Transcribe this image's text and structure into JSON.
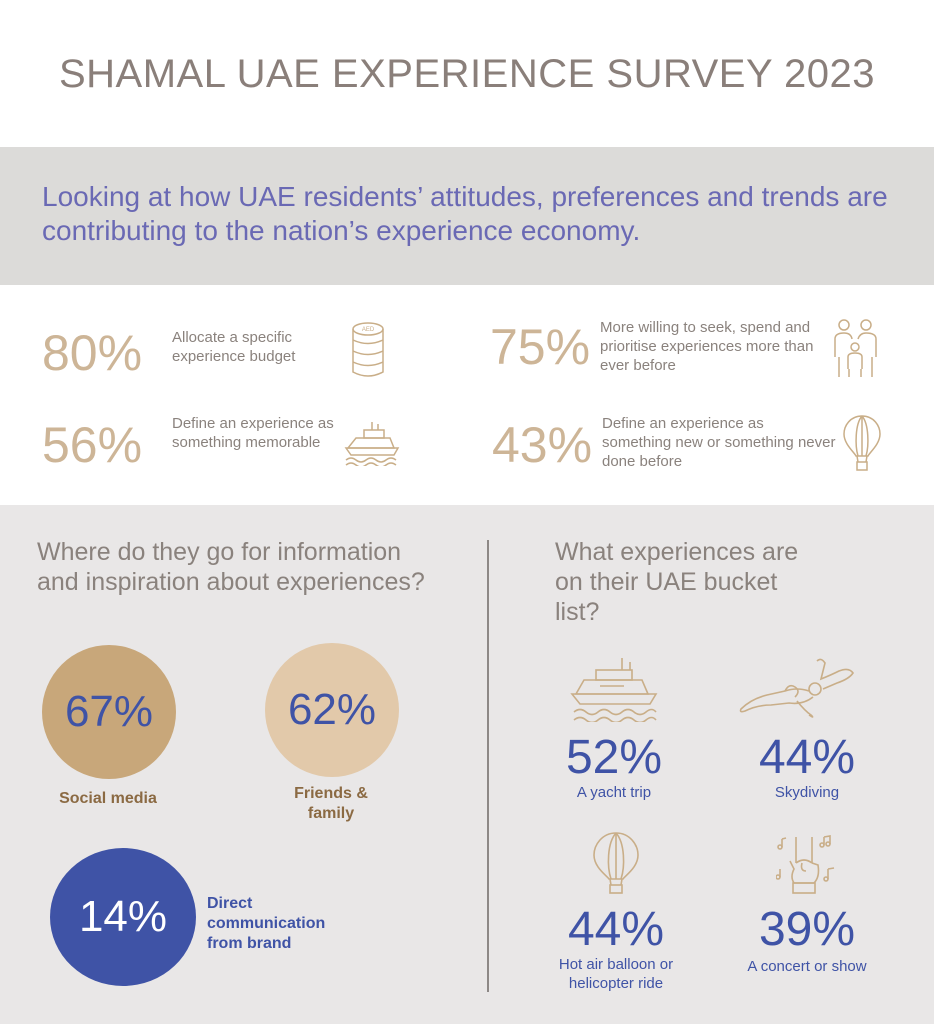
{
  "title": "SHAMAL UAE EXPERIENCE SURVEY 2023",
  "intro": "Looking at how UAE residents’ attitudes, preferences and trends are contributing to the nation’s experience economy.",
  "stats": [
    {
      "pct": "80%",
      "desc": "Allocate a specific experience budget",
      "icon": "coin-stack-aed-icon",
      "icon_text": "AED"
    },
    {
      "pct": "75%",
      "desc": "More willing to seek, spend and prioritise experiences more than ever before",
      "icon": "family-icon"
    },
    {
      "pct": "56%",
      "desc": "Define an experience as something memorable",
      "icon": "yacht-icon"
    },
    {
      "pct": "43%",
      "desc": "Define an experience as something new or something never done before",
      "icon": "hot-air-balloon-icon"
    }
  ],
  "sources": {
    "question": "Where do they go for information and inspiration about experiences?",
    "items": [
      {
        "pct": "67%",
        "label": "Social media",
        "value": 67,
        "color": "#c8a77a",
        "text_color": "#8b6a43"
      },
      {
        "pct": "62%",
        "label": "Friends & family",
        "value": 62,
        "color": "#e2c9aa",
        "text_color": "#8b6a43"
      },
      {
        "pct": "14%",
        "label": "Direct communication from brand",
        "value": 14,
        "color": "#3f53a6",
        "text_color": "#3f53a6"
      }
    ]
  },
  "bucket": {
    "question": "What experiences are on their UAE bucket list?",
    "items": [
      {
        "pct": "52%",
        "label": "A yacht trip",
        "icon": "yacht-icon"
      },
      {
        "pct": "44%",
        "label": "Skydiving",
        "icon": "skydiver-icon"
      },
      {
        "pct": "44%",
        "label": "Hot air balloon or helicopter ride",
        "icon": "hot-air-balloon-icon"
      },
      {
        "pct": "39%",
        "label": "A concert or show",
        "icon": "rock-hand-music-icon"
      }
    ]
  },
  "colors": {
    "title": "#8a7f7a",
    "intro": "#6a69b4",
    "stat_pct": "#cdb597",
    "icon": "#c9ae88",
    "blue": "#3f53a6",
    "band": "#dcdbd9",
    "lower_bg": "#e9e7e7"
  }
}
